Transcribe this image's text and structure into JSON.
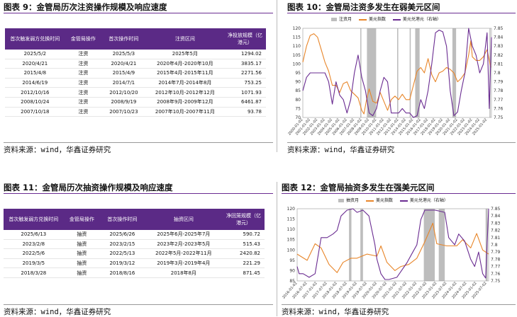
{
  "panels": {
    "p9": {
      "title": "图表 9：金管局历次注资操作规模及响应速度",
      "source": "资料来源：wind，华鑫证券研究"
    },
    "p10": {
      "title": "图表 10：金管局注资多发生在弱美元区间",
      "source": "资料来源：wind，华鑫证券研究"
    },
    "p11": {
      "title": "图表 11：金管局历次抽资操作规模及响应速度",
      "source": "资料来源：wind，华鑫证券研究"
    },
    "p12": {
      "title": "图表 12：金管局抽资多发生在强美元区间",
      "source": "资料来源：wind，华鑫证券研究"
    }
  },
  "table9": {
    "headers": [
      "首次触发弱方兑换时间",
      "金管局操作",
      "首次操作时间",
      "注资区间",
      "净投放规模（亿港元）"
    ],
    "rows": [
      [
        "2025/5/2",
        "注资",
        "2025/5/3",
        "2025年5月",
        "1294.02"
      ],
      [
        "2020/4/21",
        "注资",
        "2020/4/21",
        "2020年4月-2020年10月",
        "3835.17"
      ],
      [
        "2015/4/8",
        "注资",
        "2015/4/9",
        "2015年4月-2015年11月",
        "2271.56"
      ],
      [
        "2014/6/19",
        "注资",
        "2014/7/1",
        "2014年7月-2014年8月",
        "753.25"
      ],
      [
        "2012/10/16",
        "注资",
        "2012/10/20",
        "2012年10月-2012年12月",
        "1071.93"
      ],
      [
        "2008/10/24",
        "注资",
        "2008/9/19",
        "2008年9月-2009年12月",
        "6461.87"
      ],
      [
        "2007/10/18",
        "注资",
        "2007/10/23",
        "2007年10月-2007年11月",
        "93.78"
      ]
    ]
  },
  "table11": {
    "headers": [
      "首次触发弱方兑换时间",
      "金管局操作",
      "首次操作时间",
      "抽资区间",
      "净回笼规模（亿港元）"
    ],
    "rows": [
      [
        "2025/6/13",
        "抽资",
        "2025/6/26",
        "2025年6月-2025年7月",
        "590.72"
      ],
      [
        "2023/2/8",
        "抽资",
        "2023/2/15",
        "2023年2月-2023年5月",
        "515.43"
      ],
      [
        "2022/5/6",
        "抽资",
        "2022/5/13",
        "2022年5月-2022年11月",
        "2420.82"
      ],
      [
        "2019/3/5",
        "抽资",
        "2019/3/12",
        "2019年3月-2019年4月",
        "221.29"
      ],
      [
        "2018/3/28",
        "抽资",
        "2018/8/16",
        "2018年8月",
        "871.45"
      ]
    ]
  },
  "chart_data": [
    {
      "type": "line",
      "legend": [
        "注资月",
        "美元指数",
        "美元兑港元（右轴）"
      ],
      "x_ticks": [
        "2000-01-02",
        "2001-01-02",
        "2002-01-02",
        "2003-01-02",
        "2004-01-02",
        "2005-01-02",
        "2006-01-02",
        "2007-01-02",
        "2008-01-02",
        "2009-01-02",
        "2010-01-02",
        "2011-01-02",
        "2012-01-02",
        "2013-01-02",
        "2014-01-02",
        "2015-01-02",
        "2016-01-02",
        "2017-01-02",
        "2018-01-02",
        "2019-01-02",
        "2020-01-02",
        "2021-01-02",
        "2022-01-02",
        "2023-01-02",
        "2024-01-02",
        "2025-01-02"
      ],
      "xlim": [
        2000.0,
        2025.6
      ],
      "ylim": [
        70,
        120
      ],
      "y_ticks": [
        70,
        75,
        80,
        85,
        90,
        95,
        100,
        105,
        110,
        115,
        120
      ],
      "y2lim": [
        7.75,
        7.85
      ],
      "y2_ticks": [
        "7.75",
        "7.76",
        "7.77",
        "7.78",
        "7.79",
        "7.8",
        "7.81",
        "7.82",
        "7.83",
        "7.84",
        "7.85"
      ],
      "spans": [
        [
          2007.8,
          2007.9
        ],
        [
          2008.7,
          2009.95
        ],
        [
          2012.8,
          2012.95
        ],
        [
          2014.5,
          2014.65
        ],
        [
          2015.25,
          2015.85
        ],
        [
          2020.3,
          2020.8
        ],
        [
          2025.33,
          2025.42
        ]
      ],
      "series": [
        {
          "name": "美元指数",
          "axis": "left",
          "color": "#e8862a",
          "x": [
            2000.0,
            2000.5,
            2001.0,
            2001.5,
            2002.0,
            2002.5,
            2003.0,
            2003.5,
            2004.0,
            2004.5,
            2005.0,
            2005.5,
            2006.0,
            2006.5,
            2007.0,
            2007.5,
            2008.0,
            2008.3,
            2008.6,
            2009.0,
            2009.5,
            2010.0,
            2010.5,
            2011.0,
            2011.5,
            2012.0,
            2012.5,
            2013.0,
            2013.5,
            2014.0,
            2014.5,
            2015.0,
            2015.5,
            2016.0,
            2016.5,
            2017.0,
            2017.5,
            2018.0,
            2018.5,
            2019.0,
            2019.5,
            2020.0,
            2020.5,
            2021.0,
            2021.5,
            2022.0,
            2022.5,
            2022.8,
            2023.0,
            2023.5,
            2024.0,
            2024.5,
            2025.0,
            2025.5
          ],
          "y": [
            101,
            110,
            116,
            117,
            115,
            108,
            101,
            96,
            88,
            88,
            84,
            89,
            90,
            85,
            83,
            81,
            74,
            72,
            79,
            86,
            79,
            78,
            84,
            79,
            74,
            80,
            82,
            80,
            83,
            80,
            80,
            88,
            96,
            98,
            95,
            103,
            94,
            90,
            95,
            96,
            98,
            97,
            95,
            90,
            92,
            95,
            105,
            113,
            104,
            102,
            102,
            104,
            108,
            98
          ]
        },
        {
          "name": "美元兑港元（右轴）",
          "axis": "right",
          "color": "#6a2c91",
          "x": [
            2000.0,
            2000.5,
            2001.0,
            2001.5,
            2002.0,
            2002.5,
            2003.0,
            2003.5,
            2004.0,
            2004.5,
            2005.0,
            2005.5,
            2006.0,
            2006.5,
            2007.0,
            2007.5,
            2008.0,
            2008.5,
            2009.0,
            2009.5,
            2010.0,
            2010.5,
            2011.0,
            2011.5,
            2012.0,
            2012.5,
            2013.0,
            2013.5,
            2014.0,
            2014.5,
            2015.0,
            2015.5,
            2016.0,
            2016.5,
            2017.0,
            2017.5,
            2018.0,
            2018.5,
            2019.0,
            2019.5,
            2020.0,
            2020.5,
            2021.0,
            2021.5,
            2022.0,
            2022.5,
            2023.0,
            2023.5,
            2024.0,
            2024.5,
            2025.0,
            2025.3,
            2025.6
          ],
          "y": [
            7.78,
            7.795,
            7.8,
            7.8,
            7.8,
            7.8,
            7.8,
            7.79,
            7.765,
            7.79,
            7.775,
            7.77,
            7.755,
            7.77,
            7.8,
            7.82,
            7.795,
            7.78,
            7.755,
            7.752,
            7.76,
            7.78,
            7.795,
            7.79,
            7.755,
            7.755,
            7.755,
            7.76,
            7.755,
            7.755,
            7.75,
            7.752,
            7.77,
            7.76,
            7.78,
            7.81,
            7.845,
            7.848,
            7.846,
            7.83,
            7.78,
            7.752,
            7.756,
            7.78,
            7.8,
            7.85,
            7.83,
            7.82,
            7.8,
            7.81,
            7.845,
            7.76,
            7.84
          ]
        }
      ]
    },
    {
      "type": "line",
      "legend": [
        "抽资月",
        "美元指数",
        "美元兑港元（右轴）"
      ],
      "x_ticks": [
        "2016-01-02",
        "2016-07-02",
        "2017-01-02",
        "2017-07-02",
        "2018-01-02",
        "2018-07-02",
        "2019-01-02",
        "2019-07-02",
        "2020-01-02",
        "2020-07-02",
        "2021-01-02",
        "2021-07-02",
        "2022-01-02",
        "2022-07-02",
        "2023-01-02",
        "2023-07-02",
        "2024-01-02",
        "2024-07-02",
        "2025-01-02",
        "2025-07-02"
      ],
      "xlim": [
        2016.0,
        2025.6
      ],
      "ylim": [
        85,
        120
      ],
      "y_ticks": [
        85,
        90,
        95,
        100,
        105,
        110,
        115,
        120
      ],
      "y2lim": [
        7.75,
        7.85
      ],
      "y2_ticks": [
        "7.75",
        "7.76",
        "7.77",
        "7.78",
        "7.79",
        "7.8",
        "7.81",
        "7.82",
        "7.83",
        "7.84",
        "7.85"
      ],
      "spans": [
        [
          2018.6,
          2018.72
        ],
        [
          2019.17,
          2019.3
        ],
        [
          2022.35,
          2022.9
        ],
        [
          2023.1,
          2023.4
        ],
        [
          2025.45,
          2025.55
        ]
      ],
      "series": [
        {
          "name": "美元指数",
          "axis": "left",
          "color": "#e8862a",
          "x": [
            2016.0,
            2016.5,
            2016.9,
            2017.2,
            2017.6,
            2018.0,
            2018.3,
            2018.7,
            2019.0,
            2019.5,
            2020.0,
            2020.2,
            2020.5,
            2020.9,
            2021.2,
            2021.6,
            2022.0,
            2022.4,
            2022.8,
            2023.0,
            2023.5,
            2024.0,
            2024.3,
            2024.7,
            2025.0,
            2025.3,
            2025.6
          ],
          "y": [
            98,
            95,
            103,
            101,
            93,
            89,
            94,
            96,
            96,
            98,
            97,
            102,
            94,
            90,
            92,
            93,
            96,
            104,
            113,
            103,
            102,
            102,
            105,
            101,
            108,
            100,
            98
          ]
        },
        {
          "name": "美元兑港元（右轴）",
          "axis": "right",
          "color": "#6a2c91",
          "x": [
            2016.0,
            2016.1,
            2016.3,
            2016.6,
            2016.9,
            2017.2,
            2017.5,
            2017.8,
            2018.0,
            2018.2,
            2018.5,
            2018.8,
            2019.0,
            2019.3,
            2019.6,
            2019.9,
            2020.0,
            2020.2,
            2020.4,
            2020.6,
            2021.0,
            2021.5,
            2021.8,
            2022.0,
            2022.2,
            2022.4,
            2022.9,
            2023.1,
            2023.4,
            2023.6,
            2023.9,
            2024.1,
            2024.4,
            2024.7,
            2024.9,
            2025.1,
            2025.3,
            2025.45,
            2025.6
          ],
          "y": [
            7.77,
            7.76,
            7.76,
            7.755,
            7.76,
            7.81,
            7.81,
            7.815,
            7.82,
            7.84,
            7.848,
            7.85,
            7.845,
            7.848,
            7.84,
            7.8,
            7.78,
            7.76,
            7.752,
            7.752,
            7.755,
            7.775,
            7.79,
            7.8,
            7.835,
            7.848,
            7.848,
            7.847,
            7.845,
            7.81,
            7.8,
            7.815,
            7.805,
            7.78,
            7.77,
            7.79,
            7.76,
            7.754,
            7.85
          ]
        }
      ]
    }
  ]
}
